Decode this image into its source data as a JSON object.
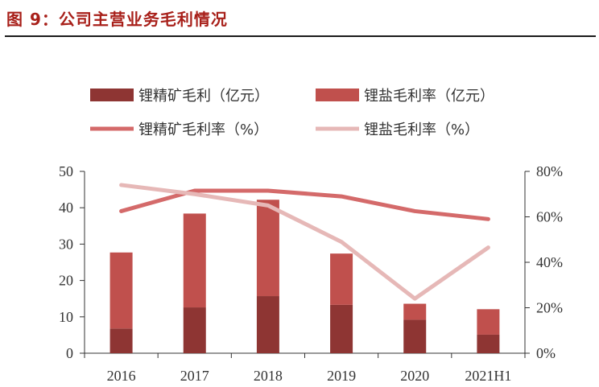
{
  "figure_title": "图 9：公司主营业务毛利情况",
  "colors": {
    "title": "#a8201a",
    "bar_concentrate": "#8e3533",
    "bar_salt": "#c0504d",
    "line_concentrate": "#d46a6a",
    "line_salt": "#e6b8b7",
    "axis": "#333333"
  },
  "chart_data": {
    "type": "bar",
    "stacked": true,
    "categories": [
      "2016",
      "2017",
      "2018",
      "2019",
      "2020",
      "2021H1"
    ],
    "series": [
      {
        "name": "锂精矿毛利（亿元）",
        "type": "bar",
        "axis": "left",
        "values": [
          6.8,
          12.6,
          15.7,
          13.3,
          9.2,
          5.1
        ]
      },
      {
        "name": "锂盐毛利率（亿元）",
        "type": "bar",
        "axis": "left",
        "values": [
          20.9,
          25.8,
          26.5,
          14.1,
          4.4,
          7.0
        ]
      },
      {
        "name": "锂精矿毛利率（%）",
        "type": "line",
        "axis": "right",
        "values": [
          62.5,
          71.5,
          71.5,
          69.0,
          62.5,
          59.0
        ]
      },
      {
        "name": "锂盐毛利率（%）",
        "type": "line",
        "axis": "right",
        "values": [
          74.0,
          70.0,
          65.0,
          49.0,
          24.0,
          46.5
        ]
      }
    ],
    "y_left": {
      "min": 0,
      "max": 50,
      "ticks": [
        "0",
        "10",
        "20",
        "30",
        "40",
        "50"
      ]
    },
    "y_right": {
      "min": 0,
      "max": 80,
      "ticks": [
        "0%",
        "20%",
        "40%",
        "60%",
        "80%"
      ]
    },
    "legend_position": "top",
    "grid": false
  }
}
